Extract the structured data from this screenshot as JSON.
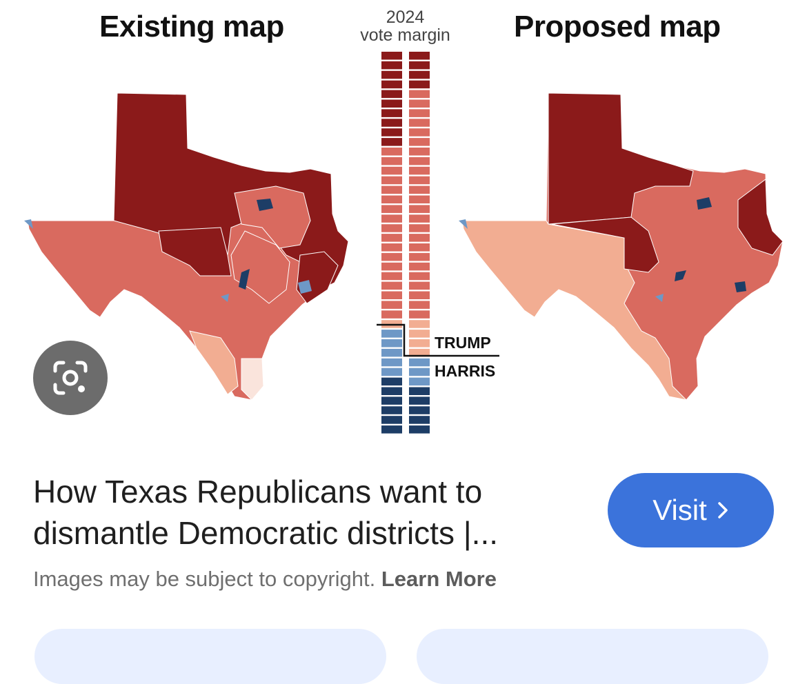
{
  "preview": {
    "existing_title": "Existing map",
    "proposed_title": "Proposed map",
    "margin_year": "2024",
    "margin_label": "vote margin",
    "trump_label": "TRUMP",
    "harris_label": "HARRIS",
    "columns": {
      "existing": [
        "darkred",
        "darkred",
        "darkred",
        "darkred",
        "darkred",
        "darkred",
        "darkred",
        "darkred",
        "darkred",
        "darkred",
        "red",
        "red",
        "red",
        "red",
        "red",
        "red",
        "red",
        "red",
        "red",
        "red",
        "red",
        "red",
        "red",
        "red",
        "red",
        "red",
        "red",
        "red",
        "pink",
        "blue",
        "blue",
        "blue",
        "blue",
        "blue",
        "navy",
        "navy",
        "navy",
        "navy",
        "navy",
        "navy"
      ],
      "proposed": [
        "darkred",
        "darkred",
        "darkred",
        "darkred",
        "red",
        "red",
        "red",
        "red",
        "red",
        "red",
        "red",
        "red",
        "red",
        "red",
        "red",
        "red",
        "red",
        "red",
        "red",
        "red",
        "red",
        "red",
        "red",
        "red",
        "red",
        "red",
        "red",
        "red",
        "pink",
        "pink",
        "pink",
        "pink",
        "blue",
        "blue",
        "blue",
        "navy",
        "navy",
        "navy",
        "navy",
        "navy"
      ]
    }
  },
  "colors": {
    "darkred": "#8b1a1a",
    "red": "#d96a5f",
    "pink": "#f2ad92",
    "lightpink": "#fae4dc",
    "blue": "#6e98c6",
    "navy": "#1d3d66",
    "visit": "#3b73db"
  },
  "result": {
    "headline": "How Texas Republicans want to dismantle Democratic districts |...",
    "visit_label": "Visit",
    "visit_icon": "chevron-right-icon",
    "disclaimer": "Images may be subject to copyright.",
    "learn_more": "Learn More",
    "lens_icon": "google-lens-icon"
  }
}
